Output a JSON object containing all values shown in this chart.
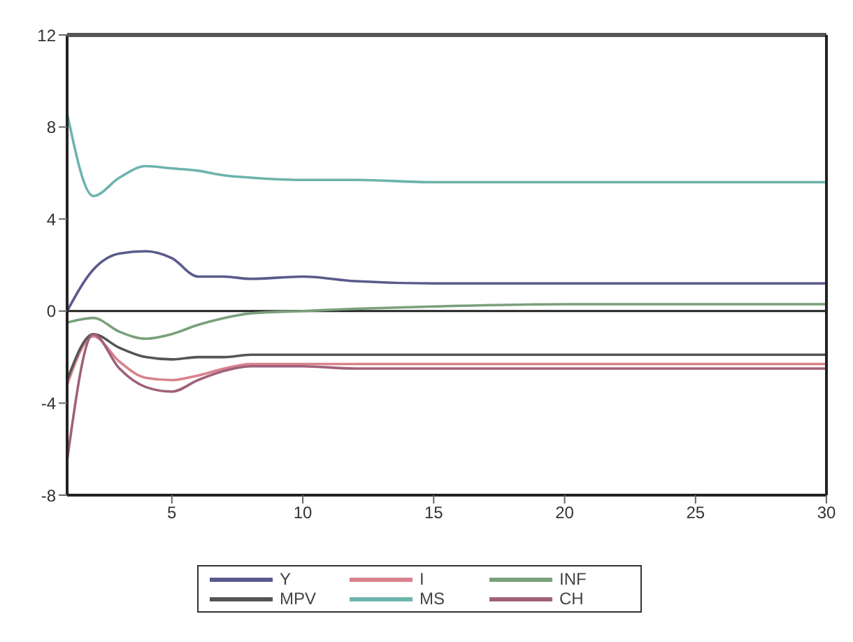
{
  "chart_data": {
    "type": "line",
    "x": [
      1,
      2,
      3,
      4,
      5,
      6,
      7,
      8,
      10,
      12,
      15,
      20,
      25,
      30
    ],
    "series": [
      {
        "name": "Y",
        "color": "#5a5a8c",
        "values": [
          0,
          1.8,
          2.5,
          2.6,
          2.3,
          1.5,
          1.5,
          1.4,
          1.5,
          1.3,
          1.2,
          1.2,
          1.2,
          1.2
        ]
      },
      {
        "name": "I",
        "color": "#d9828c",
        "values": [
          -3.2,
          -1.1,
          -2.2,
          -2.9,
          -3,
          -2.8,
          -2.5,
          -2.3,
          -2.3,
          -2.3,
          -2.3,
          -2.3,
          -2.3,
          -2.3
        ]
      },
      {
        "name": "INF",
        "color": "#7aa07a",
        "values": [
          -0.5,
          -0.3,
          -0.9,
          -1.2,
          -1,
          -0.6,
          -0.3,
          -0.1,
          0,
          0.1,
          0.2,
          0.3,
          0.3,
          0.3
        ]
      },
      {
        "name": "MPV",
        "color": "#555555",
        "values": [
          -3,
          -1,
          -1.6,
          -2,
          -2.1,
          -2,
          -2,
          -1.9,
          -1.9,
          -1.9,
          -1.9,
          -1.9,
          -1.9,
          -1.9
        ]
      },
      {
        "name": "MS",
        "color": "#6cb4ac",
        "values": [
          8.6,
          5,
          5.8,
          6.3,
          6.2,
          6.1,
          5.9,
          5.8,
          5.7,
          5.7,
          5.6,
          5.6,
          5.6,
          5.6
        ]
      },
      {
        "name": "CH",
        "color": "#a0607a",
        "values": [
          -6.5,
          -1,
          -2.5,
          -3.3,
          -3.5,
          -3,
          -2.6,
          -2.4,
          -2.4,
          -2.5,
          -2.5,
          -2.5,
          -2.5,
          -2.5
        ]
      }
    ],
    "xlim": [
      1,
      30
    ],
    "xticks": [
      5,
      10,
      15,
      20,
      25,
      30
    ],
    "ylim": [
      -8,
      12
    ],
    "yticks": [
      -8,
      -4,
      0,
      4,
      8,
      12
    ],
    "ref_lines": [
      {
        "axis": "y",
        "value": 0,
        "color": "#222222"
      }
    ],
    "grid": false,
    "legend": "bottom",
    "marker": "none",
    "line_style": "solid"
  }
}
